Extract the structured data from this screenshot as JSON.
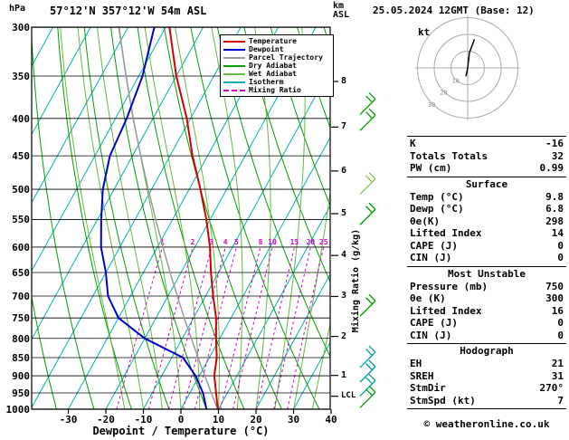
{
  "header": {
    "station": "57°12'N 357°12'W 54m ASL",
    "datetime": "25.05.2024 12GMT (Base: 12)"
  },
  "axes": {
    "pressure_unit": "hPa",
    "height_unit": "km\nASL",
    "x_label": "Dewpoint / Temperature (°C)",
    "mixing_label": "Mixing Ratio (g/kg)",
    "lcl_label": "LCL",
    "pressure_ticks": [
      300,
      350,
      400,
      450,
      500,
      550,
      600,
      650,
      700,
      750,
      800,
      850,
      900,
      950,
      1000
    ],
    "temp_ticks": [
      -30,
      -20,
      -10,
      0,
      10,
      20,
      30,
      40
    ],
    "km_ticks": [
      8,
      7,
      6,
      5,
      4,
      3,
      2,
      1
    ],
    "mixing_ratio_values": [
      1,
      2,
      3,
      4,
      5,
      8,
      10,
      15,
      20,
      25
    ]
  },
  "legend": {
    "items": [
      {
        "label": "Temperature",
        "color": "#d40000",
        "dash": false
      },
      {
        "label": "Dewpoint",
        "color": "#0000cc",
        "dash": false
      },
      {
        "label": "Parcel Trajectory",
        "color": "#9a9a9a",
        "dash": false
      },
      {
        "label": "Dry Adiabat",
        "color": "#00a000",
        "dash": false
      },
      {
        "label": "Wet Adiabat",
        "color": "#63bb3c",
        "dash": false
      },
      {
        "label": "Isotherm",
        "color": "#00b2b2",
        "dash": false
      },
      {
        "label": "Mixing Ratio",
        "color": "#d400d4",
        "dash": true
      }
    ]
  },
  "colors": {
    "isotherm": "#00b2b2",
    "dry_adiabat": "#00a000",
    "wet_adiabat": "#63bb3c",
    "mixing_ratio": "#d400d4",
    "temperature": "#d40000",
    "dewpoint": "#0000cc",
    "parcel": "#9a9a9a",
    "frame": "#000000",
    "barb_green": "#00a000",
    "barb_teal": "#00a0a0",
    "barb_lightgreen": "#7ec850"
  },
  "chart_data": {
    "type": "line",
    "title": "Skew-T log-P sounding",
    "x_axis": {
      "label": "Dewpoint / Temperature (°C)",
      "range": [
        -40,
        40
      ],
      "ticks": [
        -30,
        -20,
        -10,
        0,
        10,
        20,
        30,
        40
      ]
    },
    "y_axis": {
      "label": "hPa",
      "scale": "log",
      "range": [
        300,
        1000
      ],
      "ticks": [
        300,
        350,
        400,
        450,
        500,
        550,
        600,
        650,
        700,
        750,
        800,
        850,
        900,
        950,
        1000
      ]
    },
    "secondary_y_axis": {
      "label": "km ASL",
      "ticks": [
        1,
        2,
        3,
        4,
        5,
        6,
        7,
        8
      ],
      "marker": "LCL"
    },
    "pressure_hPa": [
      1000,
      950,
      900,
      850,
      800,
      750,
      700,
      650,
      600,
      550,
      500,
      450,
      400,
      350,
      300
    ],
    "series": [
      {
        "name": "Temperature",
        "color": "#d40000",
        "values_C": [
          9.8,
          7,
          4,
          2,
          -1,
          -4,
          -8,
          -12,
          -16,
          -21,
          -27,
          -34,
          -41,
          -50,
          -59
        ]
      },
      {
        "name": "Dewpoint",
        "color": "#0000cc",
        "values_C": [
          6.8,
          3.5,
          -1,
          -7,
          -20,
          -30,
          -36,
          -40,
          -45,
          -49,
          -53,
          -56,
          -57,
          -59,
          -63
        ]
      },
      {
        "name": "Parcel Trajectory",
        "color": "#9a9a9a",
        "values_C": [
          9.8,
          5.7,
          1.5,
          -3,
          -7.6,
          -12.5,
          -17.5,
          -22.9,
          -28.5,
          -34.5,
          -40.9,
          -47.8,
          -55.3,
          -63.4,
          -72.5
        ]
      }
    ],
    "mixing_ratio_lines_g_per_kg": [
      1,
      2,
      3,
      4,
      5,
      8,
      10,
      15,
      20,
      25
    ]
  },
  "wind_barbs": [
    {
      "pressure_hPa": 385,
      "color": "green"
    },
    {
      "pressure_hPa": 405,
      "color": "green"
    },
    {
      "pressure_hPa": 495,
      "color": "lightgreen"
    },
    {
      "pressure_hPa": 545,
      "color": "green"
    },
    {
      "pressure_hPa": 727,
      "color": "green"
    },
    {
      "pressure_hPa": 855,
      "color": "teal"
    },
    {
      "pressure_hPa": 895,
      "color": "teal"
    },
    {
      "pressure_hPa": 935,
      "color": "teal"
    },
    {
      "pressure_hPa": 970,
      "color": "green"
    }
  ],
  "hodograph": {
    "unit_label": "kt",
    "ring_values_kt": [
      10,
      20,
      30
    ],
    "trace_points_kt": [
      [
        0,
        0
      ],
      [
        1,
        9
      ],
      [
        4,
        17
      ]
    ],
    "tail_points_kt": [
      [
        0,
        0
      ],
      [
        -1,
        -5
      ]
    ]
  },
  "panel": {
    "sections": [
      {
        "header": null,
        "rows": [
          [
            "K",
            "-16"
          ],
          [
            "Totals Totals",
            "32"
          ],
          [
            "PW (cm)",
            "0.99"
          ]
        ]
      },
      {
        "header": "Surface",
        "rows": [
          [
            "Temp (°C)",
            "9.8"
          ],
          [
            "Dewp (°C)",
            "6.8"
          ],
          [
            "θe(K)",
            "298"
          ],
          [
            "Lifted Index",
            "14"
          ],
          [
            "CAPE (J)",
            "0"
          ],
          [
            "CIN (J)",
            "0"
          ]
        ]
      },
      {
        "header": "Most Unstable",
        "rows": [
          [
            "Pressure (mb)",
            "750"
          ],
          [
            "θe (K)",
            "300"
          ],
          [
            "Lifted Index",
            "16"
          ],
          [
            "CAPE (J)",
            "0"
          ],
          [
            "CIN (J)",
            "0"
          ]
        ]
      },
      {
        "header": "Hodograph",
        "rows": [
          [
            "EH",
            "21"
          ],
          [
            "SREH",
            "31"
          ],
          [
            "StmDir",
            "270°"
          ],
          [
            "StmSpd (kt)",
            "7"
          ]
        ]
      }
    ]
  },
  "footer": {
    "copyright": "© weatheronline.co.uk"
  }
}
